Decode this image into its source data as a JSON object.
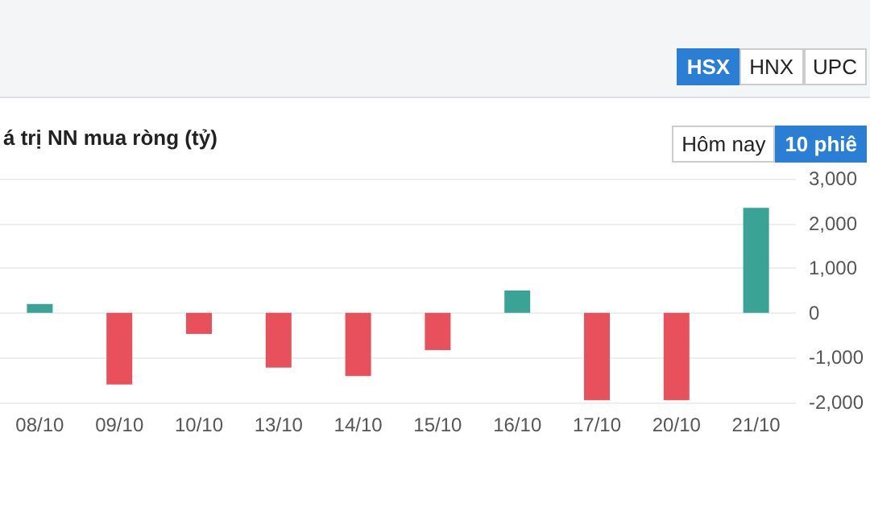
{
  "chart_data": {
    "type": "bar",
    "title": "á trị NN mua ròng (tỷ)",
    "annotations": [
      "HSX",
      "HNX",
      "UPC",
      "Hôm nay",
      "10 phiê"
    ],
    "categories": [
      "08/10",
      "09/10",
      "10/10",
      "13/10",
      "14/10",
      "15/10",
      "16/10",
      "17/10",
      "20/10",
      "21/10"
    ],
    "values": [
      200,
      -1600,
      -470,
      -1220,
      -1410,
      -830,
      500,
      -1950,
      -1950,
      2350
    ],
    "colors": [
      "#3aa396",
      "#e8505b",
      "#e8505b",
      "#e8505b",
      "#e8505b",
      "#e8505b",
      "#3aa396",
      "#e8505b",
      "#e8505b",
      "#3aa396"
    ],
    "ylim": [
      -2000,
      3000
    ],
    "yticks": [
      {
        "value": -2000,
        "label": "-2,000"
      },
      {
        "value": -1000,
        "label": "-1,000"
      },
      0,
      {
        "value": 1000,
        "label": "1,000"
      },
      {
        "value": 2000,
        "label": "2,000"
      },
      {
        "value": 3000,
        "label": "3,000"
      }
    ],
    "grid": "y"
  }
}
